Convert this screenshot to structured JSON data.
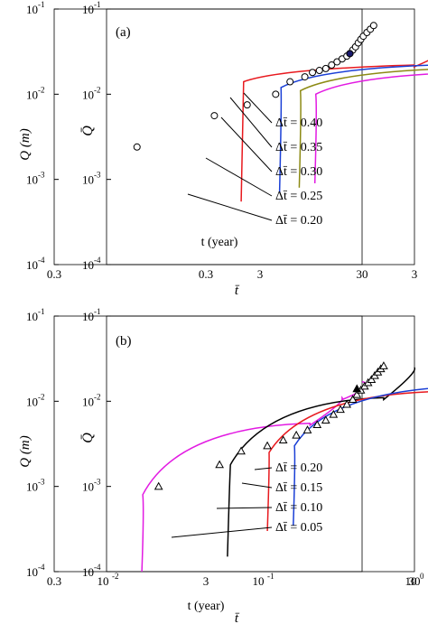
{
  "colors": {
    "red": "#e8191e",
    "blue": "#1a3fd6",
    "olive": "#8c8a14",
    "magenta": "#e21ae2",
    "black": "#000000",
    "navy": "#1a1a6e"
  },
  "chart_data": [
    {
      "panel_label": "(a)",
      "type": "line",
      "scale": "log-log",
      "outer_axes": {
        "ylabel": "Q (m)",
        "xlabel": "t (year)",
        "ylim": [
          0.0001,
          0.1
        ],
        "xlim": [
          0.1,
          3
        ],
        "yticks": [
          "10-4",
          "10-3",
          "10-2",
          "10-1"
        ],
        "xticks": [
          "0.3",
          "3"
        ]
      },
      "inner_axes": {
        "ylabel": "Q̄",
        "xlabel": "t̄",
        "ylim": [
          0.0001,
          0.1
        ],
        "xlim": [
          0.1,
          30
        ],
        "yticks": [
          "10-4",
          "10-3",
          "10-2",
          "10-1"
        ],
        "xticks": [
          "0.3",
          "3",
          "30"
        ]
      },
      "observed_points_open": [
        {
          "t": 0.15,
          "q": 0.0024
        },
        {
          "t": 0.42,
          "q": 0.0056
        },
        {
          "t": 0.65,
          "q": 0.0075
        },
        {
          "t": 0.95,
          "q": 0.01
        },
        {
          "t": 1.15,
          "q": 0.014
        },
        {
          "t": 1.4,
          "q": 0.016
        },
        {
          "t": 1.55,
          "q": 0.018
        },
        {
          "t": 1.7,
          "q": 0.019
        },
        {
          "t": 1.85,
          "q": 0.02
        },
        {
          "t": 2.0,
          "q": 0.022
        },
        {
          "t": 2.15,
          "q": 0.024
        },
        {
          "t": 2.3,
          "q": 0.026
        },
        {
          "t": 2.45,
          "q": 0.028
        },
        {
          "t": 2.55,
          "q": 0.03
        },
        {
          "t": 2.65,
          "q": 0.033
        },
        {
          "t": 2.75,
          "q": 0.036
        },
        {
          "t": 2.85,
          "q": 0.04
        },
        {
          "t": 2.95,
          "q": 0.044
        },
        {
          "t": 3.05,
          "q": 0.048
        },
        {
          "t": 3.2,
          "q": 0.053
        },
        {
          "t": 3.35,
          "q": 0.058
        },
        {
          "t": 3.5,
          "q": 0.064
        }
      ],
      "observed_points_filled": [
        {
          "t": 2.55,
          "q": 0.03
        }
      ],
      "series": [
        {
          "color": "red",
          "label": "Δt̄ = 0.20",
          "t0": 0.6,
          "q0": 0.00055,
          "segments": [
            [
              0.62,
              0.014,
              6.0,
              0.022
            ],
            [
              6.0,
              0.022,
              9.0,
              0.035
            ],
            [
              9.0,
              0.035,
              13.0,
              0.055
            ]
          ]
        },
        {
          "color": "blue",
          "label": "Δt̄ = 0.25",
          "t0": 1.0,
          "q0": 0.0007,
          "segments": [
            [
              1.02,
              0.012,
              8.0,
              0.022
            ],
            [
              8.0,
              0.022,
              12.0,
              0.036
            ],
            [
              12.0,
              0.036,
              16.0,
              0.057
            ]
          ]
        },
        {
          "color": "olive",
          "label": "Δt̄ = 0.30",
          "t0": 1.3,
          "q0": 0.0008,
          "segments": [
            [
              1.32,
              0.011,
              9.5,
              0.02
            ],
            [
              9.5,
              0.02,
              14.0,
              0.034
            ],
            [
              14.0,
              0.034,
              19.0,
              0.056
            ]
          ]
        },
        {
          "color": "magenta",
          "label": "Δt̄ = 0.35",
          "t0": 1.6,
          "q0": 0.0009,
          "segments": [
            [
              1.62,
              0.01,
              11.0,
              0.018
            ],
            [
              11.0,
              0.018,
              17.0,
              0.03
            ],
            [
              17.0,
              0.03,
              23.0,
              0.063
            ]
          ]
        }
      ],
      "annotations": [
        "Δt̄ = 0.40",
        "Δt̄ = 0.35",
        "Δt̄ = 0.30",
        "Δt̄ = 0.25",
        "Δt̄ = 0.20"
      ]
    },
    {
      "panel_label": "(b)",
      "type": "line",
      "scale": "log-log",
      "outer_axes": {
        "ylabel": "Q (m)",
        "xlabel": "t (year)",
        "ylim": [
          0.0001,
          0.1
        ],
        "xlim": [
          0.1,
          3
        ],
        "yticks": [
          "10-4",
          "10-3",
          "10-2",
          "10-1"
        ],
        "xticks": [
          "0.3",
          "3",
          "30"
        ]
      },
      "inner_axes": {
        "ylabel": "Q̄",
        "xlabel": "t̄",
        "ylim": [
          0.0001,
          0.1
        ],
        "xlim": [
          0.01,
          1
        ],
        "yticks": [
          "10-4",
          "10-3",
          "10-2",
          "10-1"
        ],
        "xticks": [
          "10-2",
          "10-1",
          "100"
        ]
      },
      "observed_points_open": [
        {
          "t": 0.2,
          "q": 0.001
        },
        {
          "t": 0.45,
          "q": 0.0018
        },
        {
          "t": 0.6,
          "q": 0.0026
        },
        {
          "t": 0.85,
          "q": 0.003
        },
        {
          "t": 1.05,
          "q": 0.0035
        },
        {
          "t": 1.25,
          "q": 0.004
        },
        {
          "t": 1.45,
          "q": 0.0046
        },
        {
          "t": 1.65,
          "q": 0.0053
        },
        {
          "t": 1.85,
          "q": 0.006
        },
        {
          "t": 2.05,
          "q": 0.007
        },
        {
          "t": 2.25,
          "q": 0.008
        },
        {
          "t": 2.45,
          "q": 0.0092
        },
        {
          "t": 2.65,
          "q": 0.0105
        },
        {
          "t": 2.8,
          "q": 0.012
        },
        {
          "t": 2.95,
          "q": 0.0135
        },
        {
          "t": 3.1,
          "q": 0.015
        },
        {
          "t": 3.25,
          "q": 0.0165
        },
        {
          "t": 3.4,
          "q": 0.018
        },
        {
          "t": 3.55,
          "q": 0.02
        },
        {
          "t": 3.7,
          "q": 0.022
        },
        {
          "t": 3.85,
          "q": 0.024
        },
        {
          "t": 4.0,
          "q": 0.026
        }
      ],
      "observed_points_filled": [
        {
          "t": 2.8,
          "q": 0.014
        }
      ],
      "series": [
        {
          "color": "magenta",
          "label": "Δt̄ = 0.05",
          "t0": 0.16,
          "q0": 0.0001,
          "segments": [
            [
              0.162,
              0.0008,
              1.5,
              0.0055
            ],
            [
              1.5,
              0.0055,
              2.3,
              0.011
            ],
            [
              2.3,
              0.011,
              3.0,
              0.017
            ]
          ]
        },
        {
          "color": "black",
          "label": "Δt̄ = 0.10",
          "t0": 0.5,
          "q0": 0.00015,
          "segments": [
            [
              0.52,
              0.0018,
              4.0,
              0.011
            ],
            [
              4.0,
              0.011,
              6.0,
              0.025
            ]
          ]
        },
        {
          "color": "red",
          "label": "Δt̄ = 0.15",
          "t0": 0.85,
          "q0": 0.0003,
          "segments": [
            [
              0.87,
              0.0025,
              8.0,
              0.013
            ],
            [
              8.0,
              0.013,
              12.0,
              0.027
            ]
          ]
        },
        {
          "color": "blue",
          "label": "Δt̄ = 0.20",
          "t0": 1.2,
          "q0": 0.00035,
          "segments": [
            [
              1.22,
              0.003,
              12.0,
              0.015
            ],
            [
              12.0,
              0.015,
              16.0,
              0.028
            ]
          ]
        }
      ],
      "annotations": [
        "Δt̄ = 0.20",
        "Δt̄ = 0.15",
        "Δt̄ = 0.10",
        "Δt̄ = 0.05"
      ]
    }
  ]
}
